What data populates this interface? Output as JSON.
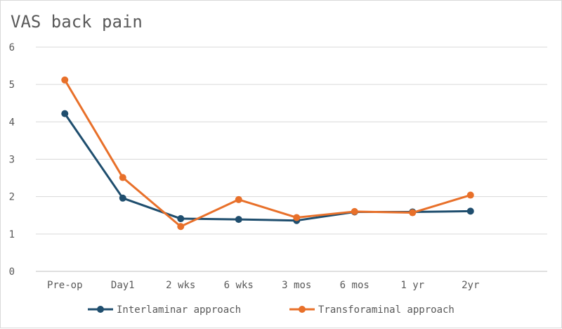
{
  "chart_data": {
    "type": "line",
    "title": "VAS back pain",
    "xlabel": "",
    "ylabel": "",
    "categories": [
      "Pre-op",
      "Day1",
      "2 wks",
      "6 wks",
      "3 mos",
      "6 mos",
      "1 yr",
      "2yr"
    ],
    "ylim": [
      0,
      6
    ],
    "yticks": [
      "0",
      "1",
      "2",
      "3",
      "4",
      "5",
      "6"
    ],
    "grid": true,
    "legend": "bottom",
    "series": [
      {
        "name": "Interlaminar approach",
        "color": "#1f4e6e",
        "values": [
          4.22,
          1.96,
          1.41,
          1.39,
          1.36,
          1.59,
          1.59,
          1.61
        ]
      },
      {
        "name": "Transforaminal approach",
        "color": "#e8702a",
        "values": [
          5.12,
          2.51,
          1.2,
          1.92,
          1.44,
          1.6,
          1.57,
          2.04
        ]
      }
    ]
  }
}
